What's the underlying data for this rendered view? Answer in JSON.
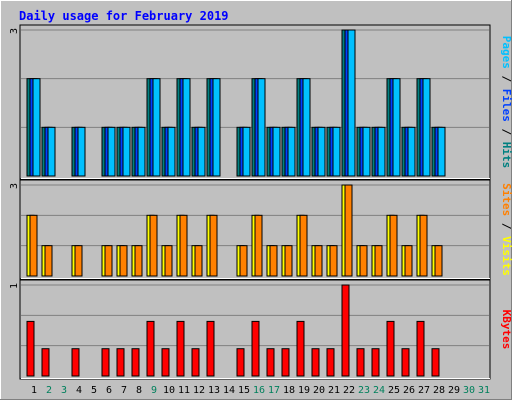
{
  "chart_data": {
    "type": "bar",
    "title": "Daily usage for February 2019",
    "categories": [
      "1",
      "2",
      "3",
      "4",
      "5",
      "6",
      "7",
      "8",
      "9",
      "10",
      "11",
      "12",
      "13",
      "14",
      "15",
      "16",
      "17",
      "18",
      "19",
      "20",
      "21",
      "22",
      "23",
      "24",
      "25",
      "26",
      "27",
      "28",
      "29",
      "30",
      "31"
    ],
    "weekend_days": [
      2,
      3,
      9,
      16,
      17,
      23,
      24,
      30,
      31
    ],
    "panels": [
      {
        "ymax_label": "3",
        "ylim": [
          0,
          3
        ],
        "ylabel_parts": [
          {
            "text": "Pages",
            "color": "#00c0ff"
          },
          {
            "text": " / ",
            "color": "#000000"
          },
          {
            "text": "Files",
            "color": "#0040ff"
          },
          {
            "text": " / ",
            "color": "#000000"
          },
          {
            "text": "Hits",
            "color": "#008080"
          }
        ],
        "series": [
          {
            "name": "Hits",
            "color": "#008080",
            "values": [
              2,
              1,
              0,
              1,
              0,
              1,
              1,
              1,
              2,
              1,
              2,
              1,
              2,
              0,
              1,
              2,
              1,
              1,
              2,
              1,
              1,
              3,
              1,
              1,
              2,
              1,
              2,
              1,
              0,
              0,
              0
            ]
          },
          {
            "name": "Files",
            "color": "#0040ff",
            "values": [
              2,
              1,
              0,
              1,
              0,
              1,
              1,
              1,
              2,
              1,
              2,
              1,
              2,
              0,
              1,
              2,
              1,
              1,
              2,
              1,
              1,
              3,
              1,
              1,
              2,
              1,
              2,
              1,
              0,
              0,
              0
            ]
          },
          {
            "name": "Pages",
            "color": "#00c0ff",
            "values": [
              2,
              1,
              0,
              1,
              0,
              1,
              1,
              1,
              2,
              1,
              2,
              1,
              2,
              0,
              1,
              2,
              1,
              1,
              2,
              1,
              1,
              3,
              1,
              1,
              2,
              1,
              2,
              1,
              0,
              0,
              0
            ]
          }
        ]
      },
      {
        "ymax_label": "3",
        "ylim": [
          0,
          3
        ],
        "ylabel_parts": [
          {
            "text": "Sites",
            "color": "#ff8000"
          },
          {
            "text": " / ",
            "color": "#000000"
          },
          {
            "text": "Visits",
            "color": "#ffff00"
          }
        ],
        "series": [
          {
            "name": "Visits",
            "color": "#ffff00",
            "values": [
              2,
              1,
              0,
              1,
              0,
              1,
              1,
              1,
              2,
              1,
              2,
              1,
              2,
              0,
              1,
              2,
              1,
              1,
              2,
              1,
              1,
              3,
              1,
              1,
              2,
              1,
              2,
              1,
              0,
              0,
              0
            ]
          },
          {
            "name": "Sites",
            "color": "#ff8000",
            "values": [
              2,
              1,
              0,
              1,
              0,
              1,
              1,
              1,
              2,
              1,
              2,
              1,
              2,
              0,
              1,
              2,
              1,
              1,
              2,
              1,
              1,
              3,
              1,
              1,
              2,
              1,
              2,
              1,
              0,
              0,
              0
            ]
          }
        ]
      },
      {
        "ymax_label": "1",
        "ylim": [
          0,
          1
        ],
        "ylabel_parts": [
          {
            "text": "KBytes",
            "color": "#ff0000"
          }
        ],
        "series": [
          {
            "name": "KBytes",
            "color": "#ff0000",
            "values": [
              0.6,
              0.3,
              0,
              0.3,
              0,
              0.3,
              0.3,
              0.3,
              0.6,
              0.3,
              0.6,
              0.3,
              0.6,
              0,
              0.3,
              0.6,
              0.3,
              0.3,
              0.6,
              0.3,
              0.3,
              1.0,
              0.3,
              0.3,
              0.6,
              0.3,
              0.6,
              0.3,
              0,
              0,
              0
            ]
          }
        ]
      }
    ],
    "colors": {
      "background": "#c0c0c0",
      "title": "#0000ff",
      "weekday_label": "#000000",
      "weekend_label": "#00805c",
      "gridline": "#808080"
    }
  }
}
